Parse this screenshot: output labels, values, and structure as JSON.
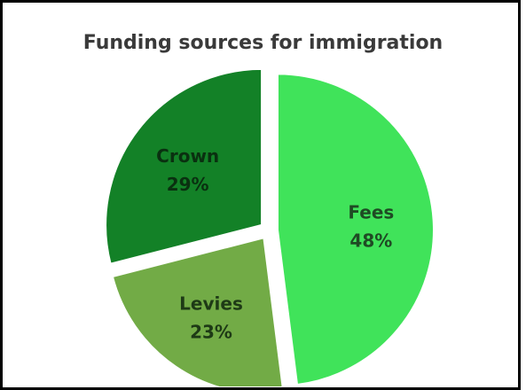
{
  "chart_data": {
    "type": "pie",
    "title": "Funding sources for immigration",
    "exploded": true,
    "slices": [
      {
        "label": "Fees",
        "value": 48,
        "pct_label": "48%",
        "color": "#40e35a",
        "label_color": "#1f4a24"
      },
      {
        "label": "Levies",
        "value": 23,
        "pct_label": "23%",
        "color": "#72ab46",
        "label_color": "#1e3a16"
      },
      {
        "label": "Crown",
        "value": 29,
        "pct_label": "29%",
        "color": "#138127",
        "label_color": "#0a3010"
      }
    ]
  }
}
